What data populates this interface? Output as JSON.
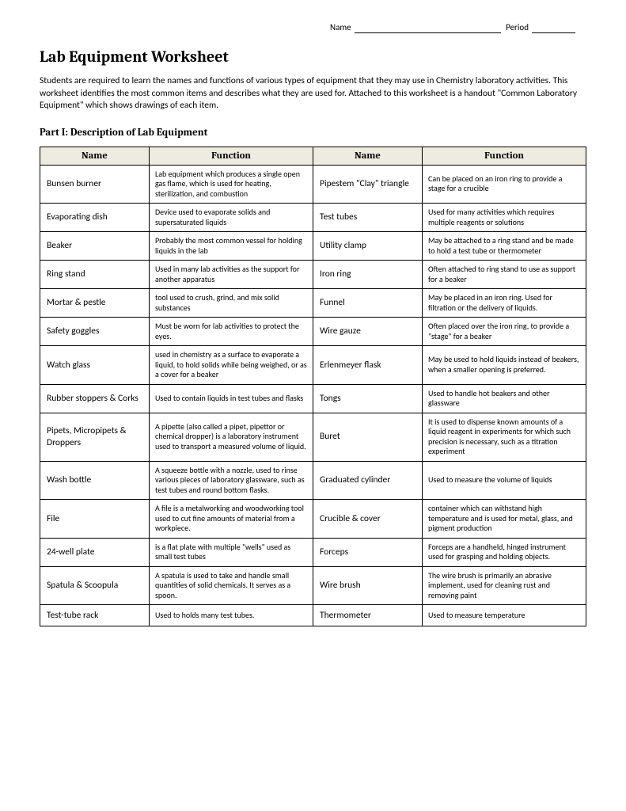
{
  "header": {
    "name_label": "Name",
    "name_blank_width": 185,
    "period_label": "Period",
    "period_blank_width": 55
  },
  "title": "Lab Equipment Worksheet",
  "intro": "Students are required to learn the names and functions of various types of equipment that they may use in Chemistry laboratory activities.  This worksheet identifies the most common items and describes what they are used for.  Attached to this worksheet is a handout \"Common Laboratory Equipment\" which shows drawings of each item.",
  "part_title": "Part I:  Description of Lab Equipment",
  "table": {
    "headers": [
      "Name",
      "Function",
      "Name",
      "Function"
    ],
    "header_bg": "#eeece1",
    "border_color": "#000000",
    "rows": [
      {
        "name1": "Bunsen burner",
        "func1": "Lab equipment which produces a single open gas flame, which is used for heating, sterilization, and combustion",
        "name2": "Pipestem \"Clay\" triangle",
        "func2": "Can be placed on an iron ring to provide a stage for a crucible"
      },
      {
        "name1": "Evaporating dish",
        "func1": "Device used to evaporate solids and supersaturated liquids",
        "name2": "Test tubes",
        "func2": "Used for many activities which requires multiple reagents or solutions"
      },
      {
        "name1": "Beaker",
        "func1": "Probably the most common vessel for holding liquids in the lab",
        "name2": "Utility clamp",
        "func2": "May be attached to a ring stand and be made to hold a test tube or thermometer"
      },
      {
        "name1": "Ring stand",
        "func1": "Used in many lab activities as the support for another apparatus",
        "name2": "Iron ring",
        "func2": "Often attached to ring stand to use as support for a beaker"
      },
      {
        "name1": "Mortar & pestle",
        "func1": "tool used to crush, grind, and mix solid substances",
        "name2": "Funnel",
        "func2": "May be placed in an iron ring. Used for filtration or the delivery of liquids."
      },
      {
        "name1": "Safety goggles",
        "func1": "Must be worn for lab activities to protect the eyes.",
        "name2": "Wire gauze",
        "func2": "Often placed over the iron ring, to provide a \"stage\" for a beaker"
      },
      {
        "name1": "Watch glass",
        "func1": "used in chemistry as a surface to evaporate a liquid, to hold solids while being weighed, or as a cover for a beaker",
        "name2": "Erlenmeyer flask",
        "func2": "May be used to hold liquids instead of beakers, when a smaller opening is preferred."
      },
      {
        "name1": "Rubber stoppers & Corks",
        "func1": "Used to contain liquids in test tubes and flasks",
        "name2": "Tongs",
        "func2": "Used to handle hot beakers and other glassware"
      },
      {
        "name1": "Pipets, Micropipets & Droppers",
        "func1": "A pipette (also called a pipet, pipettor or chemical dropper) is a laboratory instrument used to transport a measured volume of liquid.",
        "name2": "Buret",
        "func2": "It is used to dispense known amounts of a liquid reagent in experiments for which such precision is necessary, such as a titration experiment"
      },
      {
        "name1": "Wash bottle",
        "func1": "A squeeze bottle with a nozzle, used to rinse various pieces of laboratory glassware, such as test tubes and round bottom flasks.",
        "name2": "Graduated cylinder",
        "func2": "Used to measure the volume of liquids"
      },
      {
        "name1": "File",
        "func1": "A file is a metalworking and woodworking tool used to cut fine amounts of material from a workpiece.",
        "name2": "Crucible & cover",
        "func2": "container which can withstand high temperature and is used for metal, glass, and pigment production"
      },
      {
        "name1": "24-well plate",
        "func1": "is a flat plate with multiple \"wells\" used as small test tubes",
        "name2": "Forceps",
        "func2": "Forceps are a handheld, hinged instrument used for grasping and holding objects."
      },
      {
        "name1": "Spatula & Scoopula",
        "func1": "A spatula is used to take and handle small quantities of solid chemicals. It serves as a spoon.",
        "name2": "Wire brush",
        "func2": "The wire brush is primarily an abrasive implement, used for cleaning rust and removing paint"
      },
      {
        "name1": "Test-tube rack",
        "func1": "Used to holds many test tubes.",
        "name2": "Thermometer",
        "func2": "Used to measure temperature"
      }
    ]
  }
}
